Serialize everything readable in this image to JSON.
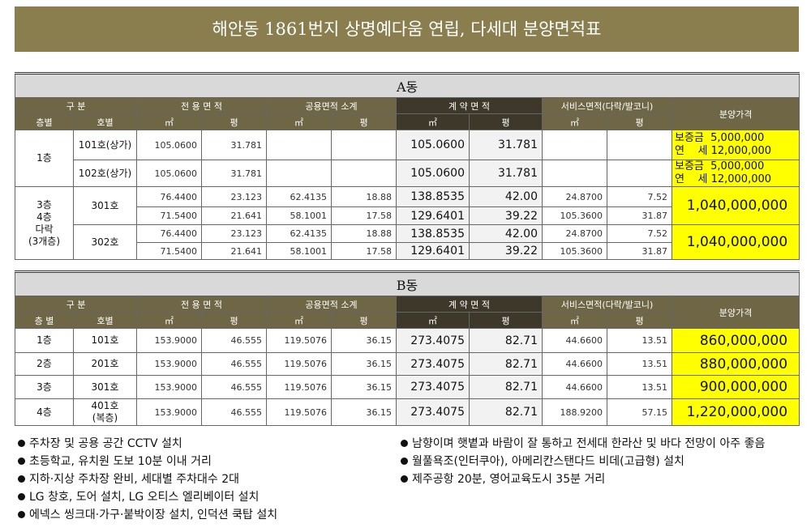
{
  "title": "해안동 1861번지 상명예다움 연립, 다세대 분양면적표",
  "tables": [
    {
      "label": "A동",
      "header": [
        "구 분",
        "전 용 면 적",
        "공용면적 소계",
        "계 약 면 적",
        "서비스면적(다락/발코니)",
        "분양가격"
      ],
      "subheader": [
        "층별",
        "호별",
        "㎡",
        "평",
        "㎡",
        "평",
        "㎡",
        "평",
        "㎡",
        "평"
      ],
      "rows": [
        [
          "1층",
          "101호(상가)",
          "105.0600",
          "31.781",
          "105.0600",
          "31.781",
          [
            "보증금  5,000,000",
            "연    세 12,000,000"
          ]
        ],
        [
          "102호(상가)",
          "105.0600",
          "31.781",
          "105.0600",
          "31.781",
          [
            "보증금  5,000,000",
            "연    세 12,000,000"
          ]
        ],
        [
          [
            "3층",
            "4층",
            "다락",
            "(3개층)"
          ],
          "301호",
          "76.4400",
          "23.123",
          "62.4135",
          "18.88",
          "138.8535",
          "42.00",
          "24.8700",
          "7.52",
          "1,040,000,000"
        ],
        [
          "71.5400",
          "21.641",
          "58.1001",
          "17.58",
          "129.6401",
          "39.22",
          "105.3600",
          "31.87"
        ],
        [
          "302호",
          "76.4400",
          "23.123",
          "62.4135",
          "18.88",
          "138.8535",
          "42.00",
          "24.8700",
          "7.52",
          "1,040,000,000"
        ],
        [
          "71.5400",
          "21.641",
          "58.1001",
          "17.58",
          "129.6401",
          "39.22",
          "105.3600",
          "31.87"
        ]
      ]
    },
    {
      "label": "B동",
      "header": [
        "구 분",
        "전 용 면 적",
        "공용면적 소계",
        "계 약 면 적",
        "서비스면적(다락/발코니)",
        "분양가격"
      ],
      "subheader": [
        "층 별",
        "호별",
        "㎡",
        "평",
        "㎡",
        "평",
        "㎡",
        "평",
        "㎡",
        "평"
      ],
      "rows": [
        [
          "1층",
          "101호",
          "153.9000",
          "46.555",
          "119.5076",
          "36.15",
          "273.4075",
          "82.71",
          "44.6600",
          "13.51",
          "860,000,000"
        ],
        [
          "2층",
          "201호",
          "153.9000",
          "46.555",
          "119.5076",
          "36.15",
          "273.4075",
          "82.71",
          "44.6600",
          "13.51",
          "880,000,000"
        ],
        [
          "3층",
          "301호",
          "153.9000",
          "46.555",
          "119.5076",
          "36.15",
          "273.4075",
          "82.71",
          "44.6600",
          "13.51",
          "900,000,000"
        ],
        [
          "4층",
          [
            "401호",
            "(복층)"
          ],
          "153.9000",
          "46.555",
          "119.5076",
          "36.15",
          "273.4075",
          "82.71",
          "188.9200",
          "57.15",
          "1,220,000,000"
        ]
      ]
    }
  ],
  "notes": {
    "left": [
      "주차장 및 공용 공간 CCTV 설치",
      "초등학교, 유치원 도보 10분 이내 거리",
      "지하·지상 주차장 완비, 세대별 주차대수 2대",
      "LG 창호, 도어 설치, LG 오티스 엘리베이터 설치",
      "에넥스 씽크대·가구·붙박이장 설치, 인덕션 쿡탑 설치"
    ],
    "right": [
      "남향이며 햇볕과 바람이 잘 통하고 전세대 한라산 및 바다 전망이 아주 좋음",
      "월풀욕조(인터쿠아), 아메리칸스탠다드 비데(고급형) 설치",
      "제주공항 20분, 영어교육도시 35분 거리"
    ]
  }
}
